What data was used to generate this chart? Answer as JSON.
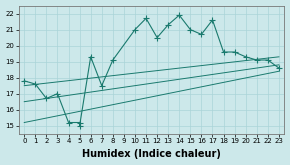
{
  "xlabel": "Humidex (Indice chaleur)",
  "bg_color": "#cce8ea",
  "grid_color": "#aad4d8",
  "line_color": "#1a7a6e",
  "xlim": [
    -0.5,
    23.5
  ],
  "ylim": [
    14.5,
    22.5
  ],
  "xticks": [
    0,
    1,
    2,
    3,
    4,
    5,
    6,
    7,
    8,
    9,
    10,
    11,
    12,
    13,
    14,
    15,
    16,
    17,
    18,
    19,
    20,
    21,
    22,
    23
  ],
  "yticks": [
    15,
    16,
    17,
    18,
    19,
    20,
    21,
    22
  ],
  "series": [
    {
      "x": [
        0,
        1,
        2,
        3,
        4,
        5,
        5,
        6,
        7,
        8,
        10,
        11,
        12,
        13,
        14,
        15,
        16,
        17,
        18,
        19,
        20,
        21,
        22,
        23
      ],
      "y": [
        17.8,
        17.6,
        16.7,
        17.0,
        15.2,
        15.2,
        15.0,
        19.3,
        17.5,
        19.1,
        21.0,
        21.7,
        20.5,
        21.3,
        21.9,
        21.0,
        20.7,
        21.6,
        19.6,
        19.6,
        19.3,
        19.1,
        19.1,
        18.6
      ],
      "marker": true
    },
    {
      "x": [
        0,
        23
      ],
      "y": [
        17.5,
        19.3
      ],
      "marker": false
    },
    {
      "x": [
        0,
        23
      ],
      "y": [
        16.5,
        18.8
      ],
      "marker": false
    },
    {
      "x": [
        0,
        23
      ],
      "y": [
        15.2,
        18.4
      ],
      "marker": false
    }
  ],
  "xlabel_fontsize": 7,
  "tick_fontsize": 5,
  "xlabel_fontweight": "bold"
}
